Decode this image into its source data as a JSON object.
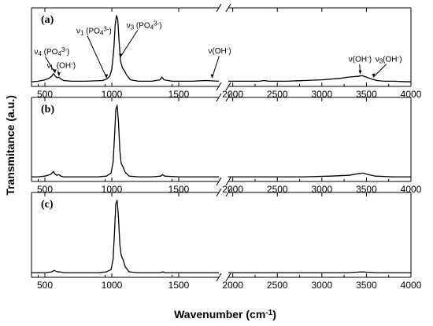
{
  "chart_data": {
    "type": "line",
    "xlabel": "Wavenumber (cm",
    "xlabel_sup": "-1",
    "xlabel_end": ")",
    "ylabel": "Transmitance (a.u.)",
    "x_segments": [
      [
        400,
        1800
      ],
      [
        1950,
        4000
      ]
    ],
    "x_ticks_left": [
      500,
      1000,
      1500
    ],
    "x_ticks_right": [
      2000,
      2500,
      3000,
      3500,
      4000
    ],
    "panels": [
      {
        "label": "(a)",
        "x": [
          400,
          450,
          500,
          530,
          550,
          565,
          575,
          590,
          605,
          620,
          640,
          700,
          800,
          880,
          930,
          960,
          985,
          1000,
          1015,
          1025,
          1035,
          1045,
          1055,
          1065,
          1080,
          1095,
          1110,
          1140,
          1200,
          1300,
          1360,
          1375,
          1390,
          1450,
          1600,
          1700,
          1800,
          1950,
          2000,
          2100,
          2200,
          2300,
          2350,
          2400,
          2600,
          2800,
          3000,
          3100,
          3200,
          3300,
          3400,
          3450,
          3500,
          3560,
          3620,
          3700,
          3800,
          4000
        ],
        "y": [
          0.02,
          0.03,
          0.05,
          0.07,
          0.1,
          0.14,
          0.11,
          0.08,
          0.09,
          0.06,
          0.04,
          0.03,
          0.03,
          0.035,
          0.04,
          0.06,
          0.1,
          0.2,
          0.5,
          0.84,
          0.98,
          0.92,
          0.6,
          0.32,
          0.22,
          0.18,
          0.12,
          0.05,
          0.03,
          0.03,
          0.05,
          0.09,
          0.05,
          0.03,
          0.03,
          0.04,
          0.03,
          0.03,
          0.03,
          0.03,
          0.03,
          0.03,
          0.04,
          0.03,
          0.03,
          0.04,
          0.05,
          0.06,
          0.07,
          0.09,
          0.1,
          0.11,
          0.09,
          0.06,
          0.04,
          0.03,
          0.03,
          0.02
        ]
      },
      {
        "label": "(b)",
        "x": [
          400,
          450,
          500,
          540,
          565,
          575,
          590,
          605,
          620,
          640,
          700,
          800,
          900,
          960,
          995,
          1010,
          1020,
          1030,
          1040,
          1050,
          1060,
          1070,
          1085,
          1100,
          1130,
          1200,
          1300,
          1365,
          1380,
          1395,
          1500,
          1700,
          1800,
          1950,
          2100,
          2300,
          2500,
          2800,
          3100,
          3300,
          3400,
          3460,
          3520,
          3600,
          3800,
          4000
        ],
        "y": [
          0.02,
          0.02,
          0.03,
          0.05,
          0.09,
          0.06,
          0.04,
          0.05,
          0.03,
          0.02,
          0.02,
          0.02,
          0.02,
          0.03,
          0.07,
          0.22,
          0.55,
          0.92,
          0.98,
          0.75,
          0.38,
          0.2,
          0.15,
          0.08,
          0.03,
          0.02,
          0.02,
          0.03,
          0.05,
          0.03,
          0.02,
          0.02,
          0.02,
          0.02,
          0.02,
          0.02,
          0.02,
          0.02,
          0.03,
          0.04,
          0.06,
          0.07,
          0.05,
          0.03,
          0.02,
          0.02
        ]
      },
      {
        "label": "(c)",
        "x": [
          400,
          450,
          500,
          550,
          570,
          580,
          595,
          610,
          650,
          700,
          800,
          900,
          960,
          995,
          1010,
          1020,
          1030,
          1040,
          1050,
          1060,
          1070,
          1085,
          1100,
          1130,
          1200,
          1300,
          1365,
          1380,
          1395,
          1500,
          1800,
          1950,
          2500,
          3000,
          3300,
          3450,
          3600,
          4000
        ],
        "y": [
          0.02,
          0.02,
          0.02,
          0.03,
          0.05,
          0.04,
          0.03,
          0.03,
          0.02,
          0.02,
          0.02,
          0.02,
          0.03,
          0.06,
          0.2,
          0.55,
          0.93,
          0.98,
          0.75,
          0.4,
          0.25,
          0.19,
          0.1,
          0.03,
          0.02,
          0.02,
          0.02,
          0.03,
          0.02,
          0.02,
          0.02,
          0.02,
          0.02,
          0.02,
          0.02,
          0.03,
          0.02,
          0.02
        ]
      }
    ],
    "annotations": [
      {
        "id": "nu4",
        "pre": "ν",
        "sub": "4",
        "mid": " (PO",
        "sub2": "4",
        "sup": "3-",
        "post": ")",
        "text_x": 420,
        "text_level": 0.42,
        "arrow_x": 575,
        "arrow_level": 0.13
      },
      {
        "id": "nuL",
        "pre": "ν",
        "sub": "L",
        "mid": " (OH",
        "sup": "-",
        "post": ")",
        "text_x": 515,
        "text_level": 0.22,
        "arrow_x": 605,
        "arrow_level": 0.09
      },
      {
        "id": "nu1",
        "pre": "ν",
        "sub": "1",
        "mid": " (PO",
        "sub2": "4",
        "sup": "3-",
        "post": ")",
        "text_x": 735,
        "text_level": 0.72,
        "arrow_x": 960,
        "arrow_level": 0.06
      },
      {
        "id": "nu3",
        "pre": "ν",
        "sub": "3",
        "mid": " (PO",
        "sub2": "4",
        "sup": "3-",
        "post": ")",
        "text_x": 1110,
        "text_level": 0.8,
        "arrow_x": 1065,
        "arrow_level": 0.36
      },
      {
        "id": "nuOH1",
        "pre": "ν(OH",
        "sup": "-",
        "post": ")",
        "text_x": 1720,
        "text_level": 0.43,
        "arrow_x": 1750,
        "arrow_level": 0.06
      },
      {
        "id": "nuOH2",
        "pre": "ν(OH",
        "sup": "-",
        "post": ")",
        "text_x": 3300,
        "text_level": 0.31,
        "arrow_x": 3430,
        "arrow_level": 0.12
      },
      {
        "id": "nuOH3",
        "pre": "ν",
        "sub": "3",
        "mid": "(OH",
        "sup": "-",
        "post": ")",
        "text_x": 3600,
        "text_level": 0.31,
        "arrow_x": 3580,
        "arrow_level": 0.07
      }
    ]
  }
}
